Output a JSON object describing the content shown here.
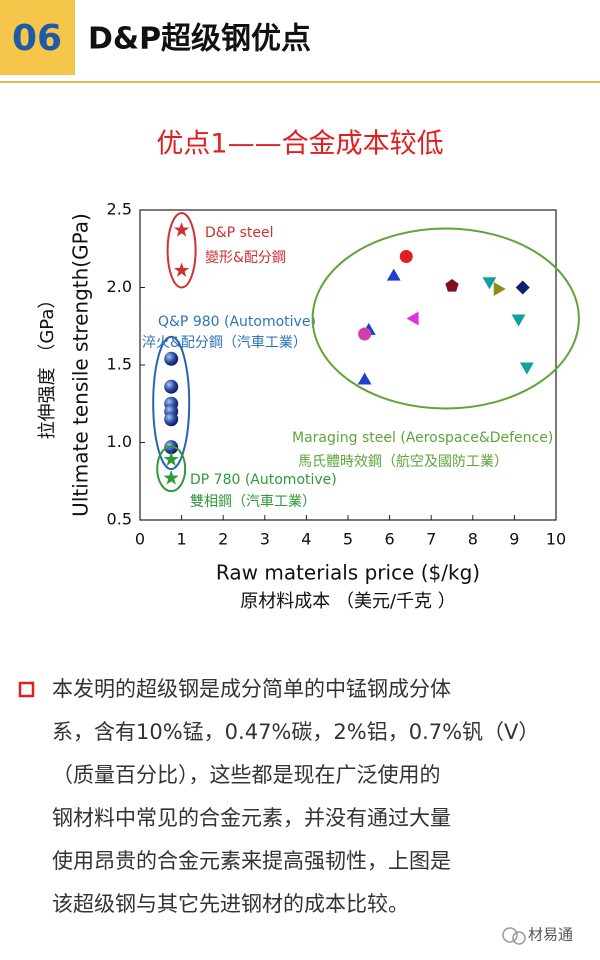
{
  "header": {
    "number": "06",
    "title": "D&P超级钢优点"
  },
  "chart_data": {
    "type": "scatter",
    "title": "优点1——合金成本较低",
    "x_label": "Raw materials price ($/kg)",
    "x_label_cn": "原材料成本 （美元/千克 ）",
    "y_label": "Ultimate tensile strength(GPa)",
    "y_label_cn": "拉伸强度 （GPa）",
    "xlim": [
      0,
      10
    ],
    "xticks": [
      0,
      1,
      2,
      3,
      4,
      5,
      6,
      7,
      8,
      9,
      10
    ],
    "ylim": [
      0.5,
      2.5
    ],
    "yticks": [
      0.5,
      {
        "value": 1,
        "label": "1.0"
      },
      1.5,
      {
        "value": 2,
        "label": "2.0"
      },
      2.5
    ],
    "series": [
      {
        "name": "D&P steel",
        "name_cn": "變形&配分鋼",
        "color": "#d03030",
        "marker": "star",
        "x": [
          1,
          1
        ],
        "values": [
          2.37,
          2.11
        ]
      },
      {
        "name": "Q&P 980 (Automotive)",
        "name_cn": "淬火&配分鋼（汽車工業）",
        "color": "#2a64b0",
        "marker": "ball",
        "x": [
          0.75,
          0.75,
          0.75,
          0.75,
          0.75,
          0.75
        ],
        "values": [
          1.54,
          1.36,
          1.25,
          1.2,
          1.15,
          0.97
        ]
      },
      {
        "name": "DP 780 (Automotive)",
        "name_cn": "雙相鋼（汽車工業）",
        "color": "#2f9a3c",
        "marker": "star",
        "x": [
          0.75,
          0.75
        ],
        "values": [
          0.89,
          0.77
        ]
      },
      {
        "name": "Maraging steel (Aerospace&Defence)",
        "name_cn": "馬氏體時效鋼（航空及國防工業）",
        "color": "#5fa53a",
        "x": [
          5.4,
          5.5,
          5.4,
          6.1,
          6.4,
          6.6,
          7.5,
          8.4,
          8.6,
          9.2,
          9.1,
          9.3
        ],
        "values": [
          1.4,
          1.72,
          1.7,
          2.07,
          2.2,
          1.8,
          2.01,
          2.04,
          1.99,
          2.0,
          1.8,
          1.49
        ],
        "markers": [
          "tri-up",
          "tri-up",
          "circle",
          "tri-up",
          "circle",
          "tri-left",
          "pentagon",
          "tri-down",
          "tri-right",
          "diamond",
          "tri-down",
          "tri-down"
        ],
        "colors": [
          "#1f3fd0",
          "#1f3fd0",
          "#d040b0",
          "#1f3fd0",
          "#e02020",
          "#e030e0",
          "#801020",
          "#10a0a0",
          "#909010",
          "#102070",
          "#10a0a0",
          "#10a0a0"
        ]
      }
    ]
  },
  "body": {
    "lines": [
      "本发明的超级钢是成分简单的中锰钢成分体",
      "系，含有10%锰，0.47%碳，2%铝，0.7%钒（V）",
      "（质量百分比），这些都是现在广泛使用的",
      "钢材料中常见的合金元素，并没有通过大量",
      "使用昂贵的合金元素来提高强韧性，上图是",
      "该超级钢与其它先进钢材的成本比较。"
    ]
  },
  "watermark": "材易通"
}
